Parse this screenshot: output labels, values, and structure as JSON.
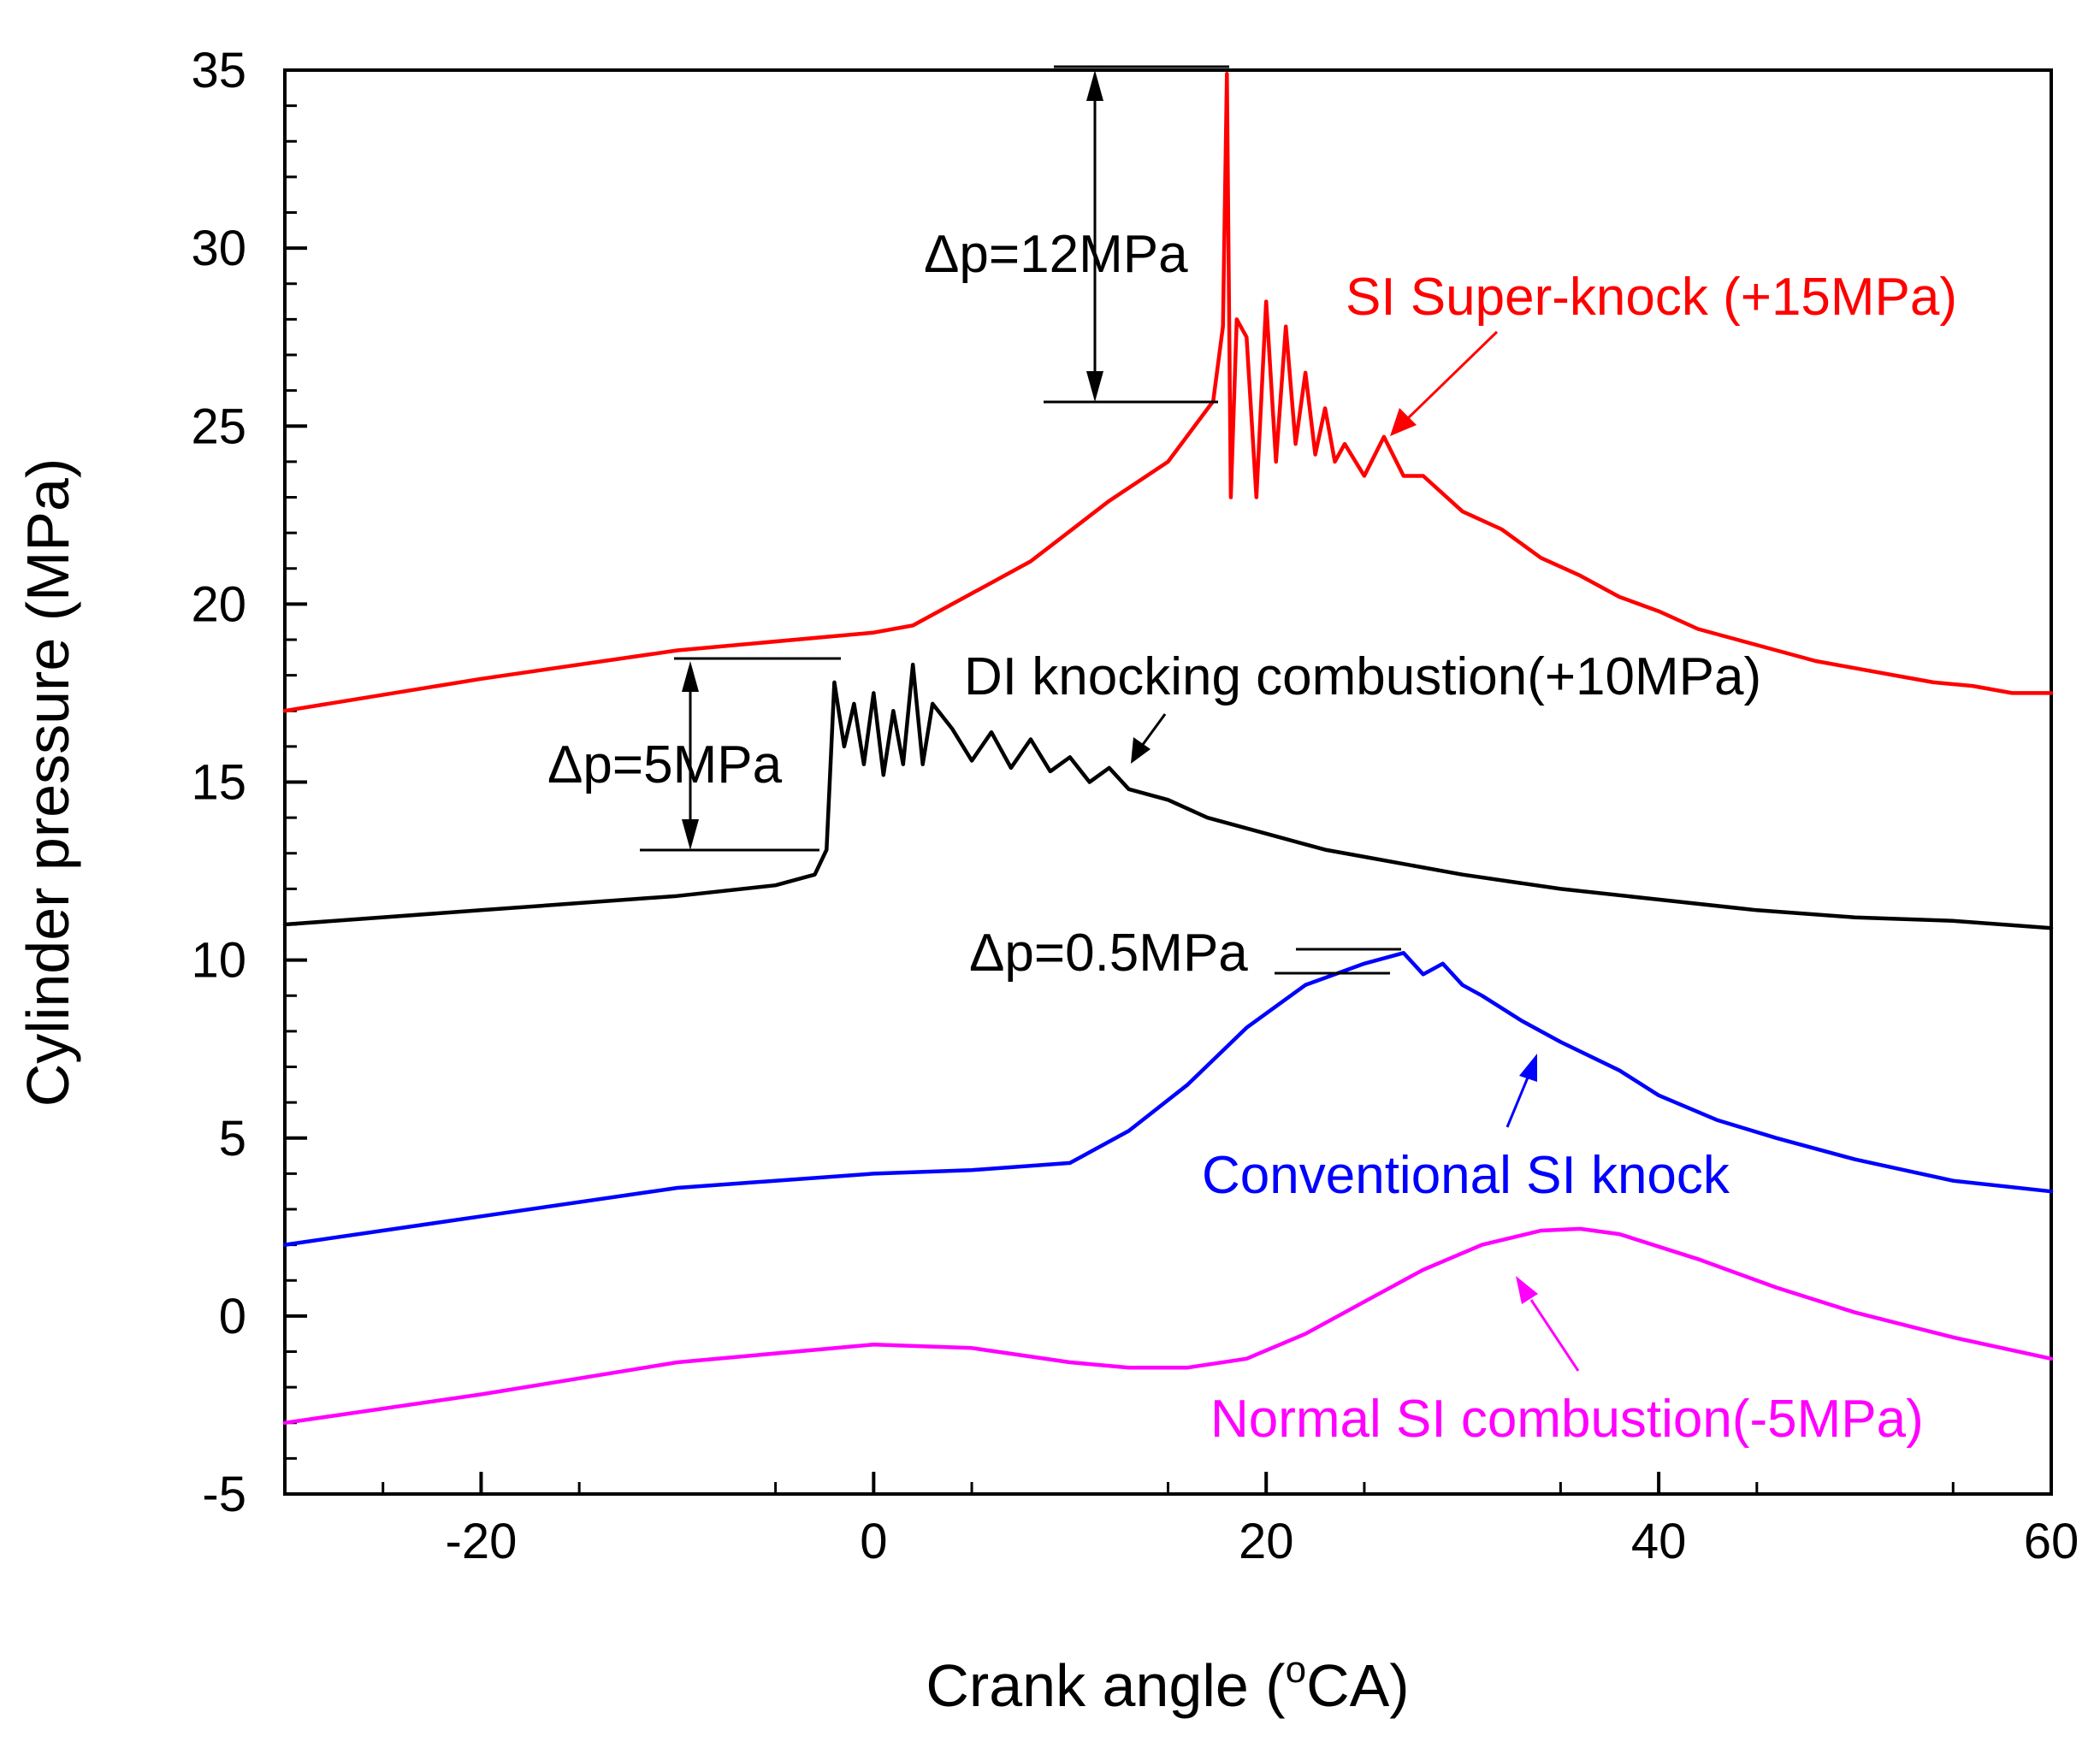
{
  "chart_data": {
    "type": "line",
    "xlabel_main": "Crank angle (",
    "xlabel_sup": "o",
    "xlabel_end": "CA)",
    "ylabel": "Cylinder pressure (MPa)",
    "xlim": [
      -30,
      60
    ],
    "ylim": [
      -5,
      35
    ],
    "xticks": [
      -20,
      0,
      20,
      40,
      60
    ],
    "yticks": [
      -5,
      0,
      5,
      10,
      15,
      20,
      25,
      30,
      35
    ],
    "xtick_labels": [
      "-20",
      "0",
      "20",
      "40",
      "60"
    ],
    "ytick_labels": [
      "-5",
      "0",
      "5",
      "10",
      "15",
      "20",
      "25",
      "30",
      "35"
    ],
    "grid": false,
    "series": [
      {
        "name": "SI Super-knock (+15MPa)",
        "color": "#ff0000",
        "x": [
          -30,
          -20,
          -10,
          0,
          2,
          5,
          8,
          12,
          15,
          17.3,
          17.8,
          18,
          18.2,
          18.5,
          19,
          19.5,
          20,
          20.5,
          21,
          21.5,
          22,
          22.5,
          23,
          23.5,
          24,
          25,
          26,
          27,
          28,
          30,
          32,
          34,
          36,
          38,
          40,
          42,
          44,
          46,
          48,
          50,
          52,
          54,
          56,
          58,
          60
        ],
        "y": [
          17.0,
          17.9,
          18.7,
          19.2,
          19.4,
          20.3,
          21.2,
          22.9,
          24.0,
          25.7,
          27.8,
          34.9,
          23.0,
          28.0,
          27.5,
          23.0,
          28.5,
          24.0,
          27.8,
          24.5,
          26.5,
          24.2,
          25.5,
          24.0,
          24.5,
          23.6,
          24.7,
          23.6,
          23.6,
          22.6,
          22.1,
          21.3,
          20.8,
          20.2,
          19.8,
          19.3,
          19.0,
          18.7,
          18.4,
          18.2,
          18.0,
          17.8,
          17.7,
          17.5,
          17.5
        ]
      },
      {
        "name": "DI knocking combustion(+10MPa)",
        "color": "#000000",
        "x": [
          -30,
          -20,
          -10,
          -5,
          -3,
          -2.4,
          -2,
          -1.5,
          -1,
          -0.5,
          0,
          0.5,
          1,
          1.5,
          2,
          2.5,
          3,
          4,
          5,
          6,
          7,
          8,
          9,
          10,
          11,
          12,
          13,
          15,
          17,
          19,
          21,
          23,
          25,
          28,
          30,
          35,
          40,
          45,
          50,
          55,
          60
        ],
        "y": [
          11.0,
          11.4,
          11.8,
          12.1,
          12.4,
          13.1,
          17.8,
          16.0,
          17.2,
          15.5,
          17.5,
          15.2,
          17.0,
          15.5,
          18.3,
          15.5,
          17.2,
          16.5,
          15.6,
          16.4,
          15.4,
          16.2,
          15.3,
          15.7,
          15.0,
          15.4,
          14.8,
          14.5,
          14.0,
          13.7,
          13.4,
          13.1,
          12.9,
          12.6,
          12.4,
          12.0,
          11.7,
          11.4,
          11.2,
          11.1,
          10.9
        ]
      },
      {
        "name": "Conventional SI knock",
        "color": "#0000ff",
        "x": [
          -30,
          -20,
          -10,
          0,
          5,
          10,
          13,
          16,
          19,
          22,
          25,
          27,
          28,
          29,
          30,
          31,
          33,
          35,
          38,
          40,
          43,
          46,
          50,
          55,
          60
        ],
        "y": [
          2.0,
          2.8,
          3.6,
          4.0,
          4.1,
          4.3,
          5.2,
          6.5,
          8.1,
          9.3,
          9.9,
          10.2,
          9.6,
          9.9,
          9.3,
          9.0,
          8.3,
          7.7,
          6.9,
          6.2,
          5.5,
          5.0,
          4.4,
          3.8,
          3.5
        ]
      },
      {
        "name": "Normal SI combustion(-5MPa)",
        "color": "#ff00ff",
        "x": [
          -30,
          -20,
          -10,
          0,
          5,
          10,
          13,
          16,
          19,
          22,
          25,
          28,
          31,
          34,
          36,
          38,
          42,
          46,
          50,
          55,
          60
        ],
        "y": [
          -3.0,
          -2.2,
          -1.3,
          -0.8,
          -0.9,
          -1.3,
          -1.45,
          -1.45,
          -1.2,
          -0.5,
          0.4,
          1.3,
          2.0,
          2.4,
          2.45,
          2.3,
          1.6,
          0.8,
          0.1,
          -0.6,
          -1.2
        ]
      }
    ],
    "annotations": {
      "dp12": "Δp=12MPa",
      "dp5": "Δp=5MPa",
      "dp05": "Δp=0.5MPa",
      "label_super": "SI Super-knock (+15MPa)",
      "label_di": "DI knocking combustion(+10MPa)",
      "label_conv": "Conventional SI knock",
      "label_normal": "Normal SI combustion(-5MPa)"
    }
  }
}
